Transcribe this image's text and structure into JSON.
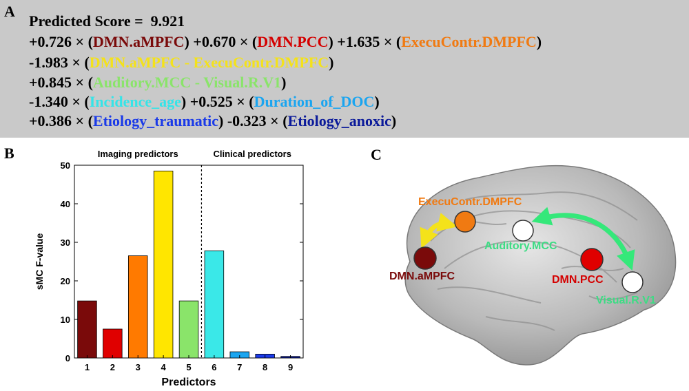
{
  "panel_a": {
    "letter": "A",
    "lines": [
      [
        {
          "t": "Predicted Score =  9.921",
          "c": "#000000"
        }
      ],
      [
        {
          "t": "+0.726 × (",
          "c": "#000000"
        },
        {
          "t": "DMN.aMPFC",
          "c": "#7a0a0a"
        },
        {
          "t": ") +0.670 × (",
          "c": "#000000"
        },
        {
          "t": "DMN.PCC",
          "c": "#d40000"
        },
        {
          "t": ") +1.635 × (",
          "c": "#000000"
        },
        {
          "t": "ExecuContr.DMPFC",
          "c": "#f07a12"
        },
        {
          "t": ")",
          "c": "#000000"
        }
      ],
      [
        {
          "t": "-1.983 × (",
          "c": "#000000"
        },
        {
          "t": "DMN.aMPFC - ExecuContr.DMPFC",
          "c": "#f4e21a"
        },
        {
          "t": ")",
          "c": "#000000"
        }
      ],
      [
        {
          "t": "+0.845 × (",
          "c": "#000000"
        },
        {
          "t": "Auditory.MCC - Visual.R.V1",
          "c": "#8ae46a"
        },
        {
          "t": ")",
          "c": "#000000"
        }
      ],
      [
        {
          "t": "-1.340 × (",
          "c": "#000000"
        },
        {
          "t": "Incidence_age",
          "c": "#35e4e8"
        },
        {
          "t": ") +0.525 × (",
          "c": "#000000"
        },
        {
          "t": "Duration_of_DOC",
          "c": "#1aa5f0"
        },
        {
          "t": ")",
          "c": "#000000"
        }
      ],
      [
        {
          "t": "+0.386 × (",
          "c": "#000000"
        },
        {
          "t": "Etiology_traumatic",
          "c": "#1a3ae8"
        },
        {
          "t": ") -0.323 × (",
          "c": "#000000"
        },
        {
          "t": "Etiology_anoxic",
          "c": "#0b1a9a"
        },
        {
          "t": ")",
          "c": "#000000"
        }
      ]
    ]
  },
  "panel_b": {
    "letter": "B",
    "group_labels": [
      "Imaging predictors",
      "Clinical predictors"
    ]
  },
  "panel_c": {
    "letter": "C",
    "regions": [
      {
        "label": "ExecuContr.DMPFC",
        "node_color": "#f07a12",
        "label_color": "#f07a12"
      },
      {
        "label": "Auditory.MCC",
        "node_color": "#ffffff",
        "label_color": "#3ddc84"
      },
      {
        "label": "DMN.aMPFC",
        "node_color": "#7a0a0a",
        "label_color": "#7a0a0a"
      },
      {
        "label": "DMN.PCC",
        "node_color": "#e00000",
        "label_color": "#d40000"
      },
      {
        "label": "Visual.R.V1",
        "node_color": "#ffffff",
        "label_color": "#3ddc84"
      }
    ],
    "arrow_colors": {
      "yellow": "#f4e21a",
      "green": "#35e87a"
    }
  },
  "chart_data": {
    "type": "bar",
    "categories": [
      "1",
      "2",
      "3",
      "4",
      "5",
      "6",
      "7",
      "8",
      "9"
    ],
    "values": [
      14.8,
      7.5,
      26.5,
      48.5,
      14.8,
      27.8,
      1.6,
      1.0,
      0.4
    ],
    "colors": [
      "#7a0a0a",
      "#e00000",
      "#ff7a00",
      "#ffe600",
      "#8ae46a",
      "#3ae8e8",
      "#1aa5f0",
      "#1a3ae8",
      "#0b1a9a"
    ],
    "xlabel": "Predictors",
    "ylabel": "sMC F-value",
    "ylim": [
      0,
      50
    ],
    "yticks": [
      0,
      10,
      20,
      30,
      40,
      50
    ],
    "divider_between": [
      5,
      6
    ],
    "grid": false
  }
}
